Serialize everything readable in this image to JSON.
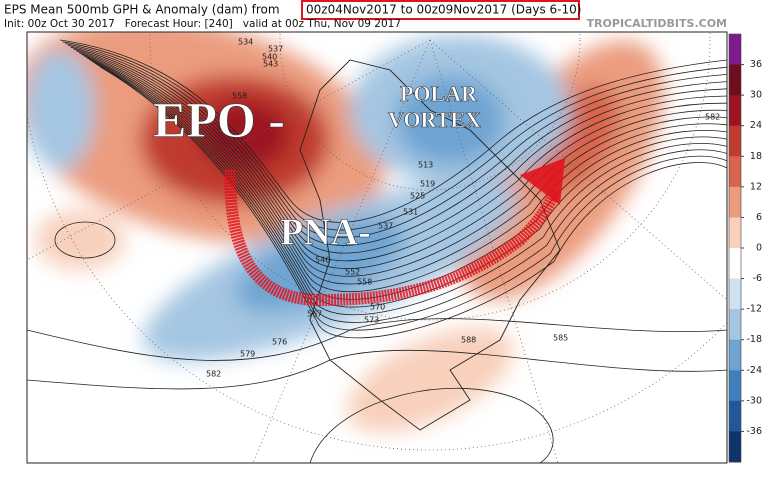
{
  "header": {
    "title": "EPS Mean 500mb GPH & Anomaly (dam) from",
    "range": "00z04Nov2017 to 00z09Nov2017 (Days 6-10)",
    "subtitle": "Init: 00z Oct 30 2017   Forecast Hour: [240]   valid at 00z Thu, Nov 09 2017",
    "site": "TROPICALTIDBITS.COM"
  },
  "annotations": [
    "EPO -",
    "POLAR",
    "VORTEX",
    "PNA-"
  ],
  "contour_labels": [
    534,
    537,
    540,
    543,
    558,
    582,
    513,
    519,
    525,
    531,
    537,
    546,
    552,
    558,
    567,
    570,
    573,
    576,
    579,
    582,
    585,
    588
  ],
  "colorbar": {
    "ticks": [
      36,
      30,
      24,
      18,
      12,
      6,
      0,
      -6,
      -12,
      -18,
      -24,
      -30,
      -36
    ],
    "colors": [
      "#7e1a8e",
      "#6e0d1c",
      "#9c1424",
      "#c03a2e",
      "#d8644c",
      "#eb9c7e",
      "#f8d0bc",
      "#ffffff",
      "#cfe0f0",
      "#a4c6e2",
      "#6fa4d2",
      "#3f7fbd",
      "#22579a",
      "#0f336c"
    ]
  }
}
